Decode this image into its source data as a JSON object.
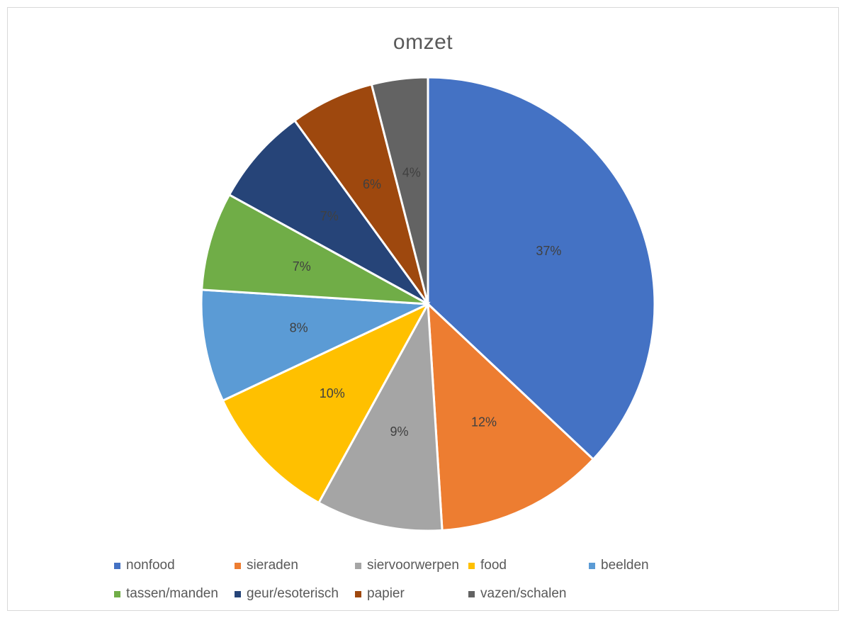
{
  "chart_data": {
    "type": "pie",
    "title": "omzet",
    "categories": [
      "nonfood",
      "sieraden",
      "siervoorwerpen",
      "food",
      "beelden",
      "tassen/manden",
      "geur/esoterisch",
      "papier",
      "vazen/schalen"
    ],
    "values": [
      37,
      12,
      9,
      10,
      8,
      7,
      7,
      6,
      4
    ],
    "labels": [
      "37%",
      "12%",
      "9%",
      "10%",
      "8%",
      "7%",
      "7%",
      "6%",
      "4%"
    ],
    "colors": [
      "#4472C4",
      "#ED7D31",
      "#A5A5A5",
      "#FFC000",
      "#5B9BD5",
      "#70AD47",
      "#264478",
      "#9E480E",
      "#636363"
    ],
    "legend_position": "bottom",
    "start_angle": "12 o'clock",
    "direction": "clockwise"
  }
}
